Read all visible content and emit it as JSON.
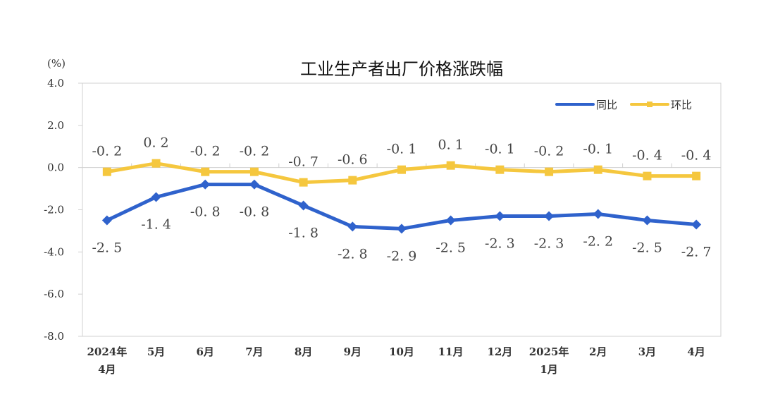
{
  "chart_data": {
    "type": "line",
    "title": "工业生产者出厂价格涨跌幅",
    "ylabel": "(%)",
    "xlabel": "",
    "ylim": [
      -8.0,
      4.0
    ],
    "yticks": [
      "4.0",
      "2.0",
      "0.0",
      "-2.0",
      "-4.0",
      "-6.0",
      "-8.0"
    ],
    "ytick_values": [
      4,
      2,
      0,
      -2,
      -4,
      -6,
      -8
    ],
    "categories": [
      [
        "2024年",
        "4月"
      ],
      [
        "5月"
      ],
      [
        "6月"
      ],
      [
        "7月"
      ],
      [
        "8月"
      ],
      [
        "9月"
      ],
      [
        "10月"
      ],
      [
        "11月"
      ],
      [
        "12月"
      ],
      [
        "2025年",
        "1月"
      ],
      [
        "2月"
      ],
      [
        "3月"
      ],
      [
        "4月"
      ]
    ],
    "legend_position": "top-right",
    "series": [
      {
        "name": "同比",
        "color": "#2f62cc",
        "marker": "diamond",
        "label_position": "below",
        "values": [
          -2.5,
          -1.4,
          -0.8,
          -0.8,
          -1.8,
          -2.8,
          -2.9,
          -2.5,
          -2.3,
          -2.3,
          -2.2,
          -2.5,
          -2.7
        ],
        "labels": [
          "-2.5",
          "-1.4",
          "-0.8",
          "-0.8",
          "-1.8",
          "-2.8",
          "-2.9",
          "-2.5",
          "-2.3",
          "-2.3",
          "-2.2",
          "-2.5",
          "-2.7"
        ]
      },
      {
        "name": "环比",
        "color": "#f5c73e",
        "marker": "square",
        "label_position": "above",
        "values": [
          -0.2,
          0.2,
          -0.2,
          -0.2,
          -0.7,
          -0.6,
          -0.1,
          0.1,
          -0.1,
          -0.2,
          -0.1,
          -0.4,
          -0.4
        ],
        "labels": [
          "-0.2",
          "0.2",
          "-0.2",
          "-0.2",
          "-0.7",
          "-0.6",
          "-0.1",
          "0.1",
          "-0.1",
          "-0.2",
          "-0.1",
          "-0.4",
          "-0.4"
        ]
      }
    ]
  }
}
